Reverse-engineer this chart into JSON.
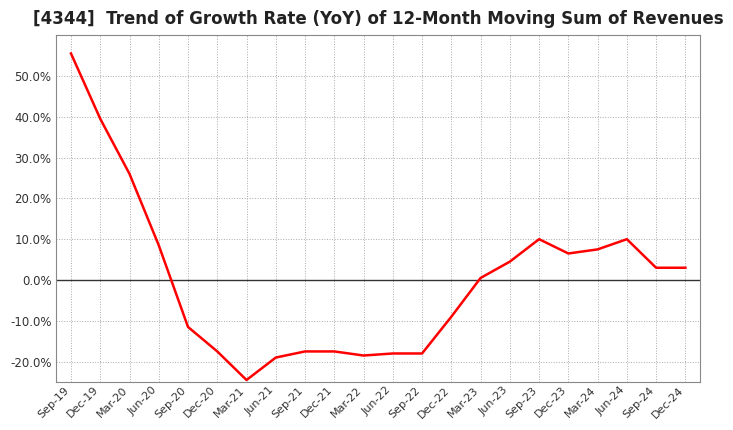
{
  "title": "[4344]  Trend of Growth Rate (YoY) of 12-Month Moving Sum of Revenues",
  "title_fontsize": 12,
  "background_color": "#ffffff",
  "line_color": "#ff0000",
  "grid_color": "#aaaaaa",
  "ylim": [
    -0.25,
    0.6
  ],
  "yticks": [
    -0.2,
    -0.1,
    0.0,
    0.1,
    0.2,
    0.3,
    0.4,
    0.5
  ],
  "x_labels": [
    "Sep-19",
    "Dec-19",
    "Mar-20",
    "Jun-20",
    "Sep-20",
    "Dec-20",
    "Mar-21",
    "Jun-21",
    "Sep-21",
    "Dec-21",
    "Mar-22",
    "Jun-22",
    "Sep-22",
    "Dec-22",
    "Mar-23",
    "Jun-23",
    "Sep-23",
    "Dec-23",
    "Mar-24",
    "Jun-24",
    "Sep-24",
    "Dec-24"
  ],
  "y_values": [
    0.555,
    0.395,
    0.26,
    0.085,
    -0.115,
    -0.175,
    -0.245,
    -0.19,
    -0.175,
    -0.175,
    -0.185,
    -0.18,
    -0.18,
    -0.09,
    0.005,
    0.045,
    0.1,
    0.065,
    0.075,
    0.1,
    0.03,
    0.03
  ]
}
